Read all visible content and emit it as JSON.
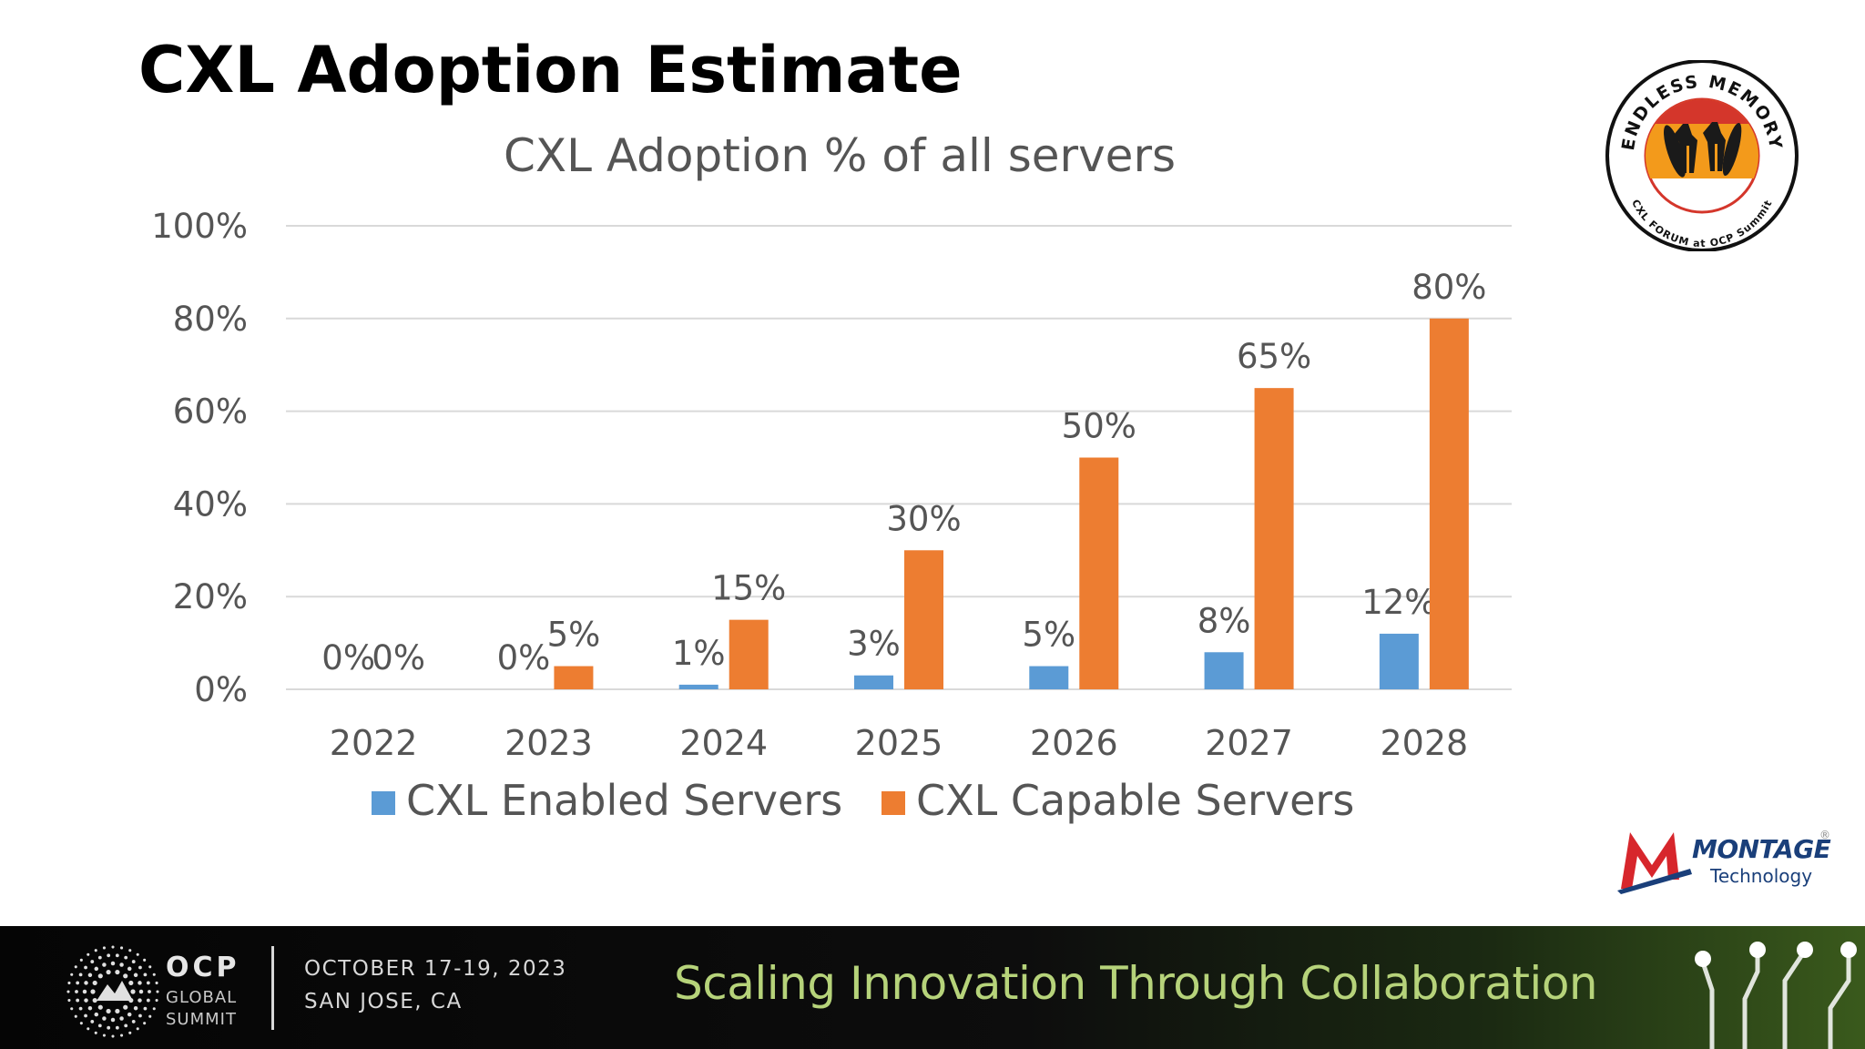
{
  "slide": {
    "title": "CXL Adoption Estimate"
  },
  "chart_data": {
    "type": "bar",
    "title": "CXL Adoption % of all servers",
    "categories": [
      "2022",
      "2023",
      "2024",
      "2025",
      "2026",
      "2027",
      "2028"
    ],
    "series": [
      {
        "name": "CXL Enabled Servers",
        "color": "#5b9bd5",
        "values": [
          0,
          0,
          1,
          3,
          5,
          8,
          12
        ],
        "labels": [
          "0%",
          "0%",
          "1%",
          "3%",
          "5%",
          "8%",
          "12%"
        ]
      },
      {
        "name": "CXL Capable Servers",
        "color": "#ed7d31",
        "values": [
          0,
          5,
          15,
          30,
          50,
          65,
          80
        ],
        "labels": [
          "0%",
          "5%",
          "15%",
          "30%",
          "50%",
          "65%",
          "80%"
        ]
      }
    ],
    "ylim": [
      0,
      100
    ],
    "yticks": [
      0,
      20,
      40,
      60,
      80,
      100
    ],
    "ytick_labels": [
      "0%",
      "20%",
      "40%",
      "60%",
      "80%",
      "100%"
    ],
    "xlabel": "",
    "ylabel": "",
    "grid": true,
    "legend": "bottom"
  },
  "logos": {
    "endless_memory": {
      "top_text": "ENDLESS MEMORY",
      "bottom_text": "CXL FORUM at OCP Summit",
      "colors": {
        "sky": "#f39a1b",
        "sea": "#ffffff",
        "ring": "#d4362b"
      }
    },
    "montage": {
      "name": "MONTAGE",
      "sub": "Technology",
      "reg": "®",
      "colors": {
        "m_red": "#d7262c",
        "m_blue": "#1a3f7a"
      }
    }
  },
  "footer": {
    "brand": "OCP",
    "brand_line2": "GLOBAL",
    "brand_line3": "SUMMIT",
    "date": "OCTOBER 17-19, 2023",
    "location": "SAN JOSE, CA",
    "tagline": "Scaling Innovation Through Collaboration",
    "colors": {
      "tagline": "#b6d37a"
    }
  }
}
